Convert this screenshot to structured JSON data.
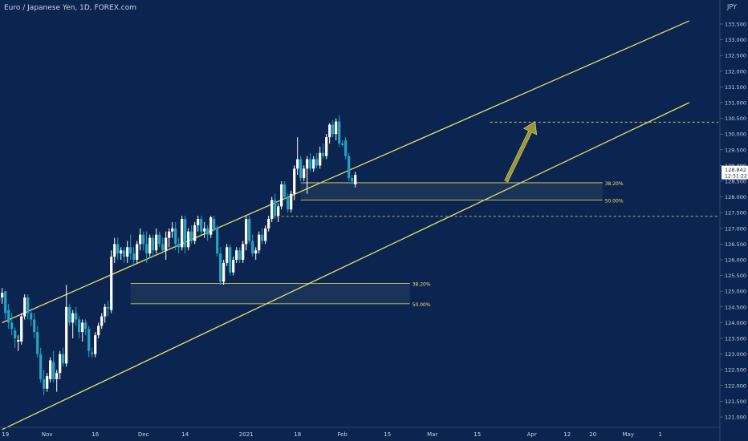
{
  "title": "Euro / Japanese Yen, 1D, FOREX.com",
  "currency": "JPY",
  "colors": {
    "background": "#0c2550",
    "up": "#ffffff",
    "down": "#26a3c4",
    "line": "#e6e06a",
    "zone": "#1f3a5c",
    "arrow": "#a7a23a",
    "text": "#c8d3e6"
  },
  "chart_data": {
    "type": "candlestick",
    "title": "Euro / Japanese Yen, 1D, FOREX.com",
    "y_ticks": [
      "121.000",
      "121.500",
      "122.000",
      "122.500",
      "123.000",
      "123.500",
      "124.000",
      "124.500",
      "125.000",
      "125.500",
      "126.000",
      "126.500",
      "127.000",
      "127.500",
      "128.000",
      "128.500",
      "129.000",
      "129.500",
      "130.000",
      "130.500",
      "131.000",
      "131.500",
      "132.000",
      "132.500",
      "133.000",
      "133.500"
    ],
    "x_ticks": [
      {
        "label": "19",
        "day": 0
      },
      {
        "label": "Nov",
        "day": 13
      },
      {
        "label": "16",
        "day": 28
      },
      {
        "label": "Dec",
        "day": 43
      },
      {
        "label": "14",
        "day": 56
      },
      {
        "label": "2021",
        "day": 75
      },
      {
        "label": "18",
        "day": 91
      },
      {
        "label": "Feb",
        "day": 105
      },
      {
        "label": "15",
        "day": 119
      },
      {
        "label": "Mar",
        "day": 133
      },
      {
        "label": "15",
        "day": 147
      },
      {
        "label": "Apr",
        "day": 164
      },
      {
        "label": "12",
        "day": 175
      },
      {
        "label": "20",
        "day": 183
      },
      {
        "label": "May",
        "day": 194
      },
      {
        "label": "1",
        "day": 204
      }
    ],
    "current_price": "128.842",
    "countdown": "12:51:22",
    "price_scale_extra": "127.500",
    "upper_channel": [
      [
        -1,
        124.0
      ],
      [
        213,
        133.6
      ]
    ],
    "lower_channel": [
      [
        -1,
        120.6
      ],
      [
        213,
        131.0
      ]
    ],
    "zones": [
      {
        "top": 125.25,
        "bottom": 124.6,
        "from_day": 39,
        "to_day": 126,
        "top_label": "38.20%",
        "bottom_label": "50.00%"
      },
      {
        "top": 128.45,
        "bottom": 127.9,
        "from_day": 92,
        "to_day": 186,
        "top_label": "38.20%",
        "bottom_label": "50.00%"
      }
    ],
    "resistance_levels": [
      {
        "price": 130.38,
        "from_day": 151
      },
      {
        "price": 127.38,
        "from_day": 83
      }
    ],
    "arrow": {
      "from": [
        156,
        128.5
      ],
      "to": [
        165,
        130.4
      ]
    },
    "candles": [
      {
        "d": -3,
        "o": 124.6,
        "h": 125.1,
        "l": 124.5,
        "c": 124.8
      },
      {
        "d": -2,
        "o": 124.8,
        "h": 125.0,
        "l": 124.5,
        "c": 124.7
      },
      {
        "d": -1,
        "o": 124.8,
        "h": 125.1,
        "l": 124.6,
        "c": 124.95
      },
      {
        "d": 0,
        "o": 125.0,
        "h": 125.0,
        "l": 124.1,
        "c": 124.3
      },
      {
        "d": 1,
        "o": 124.4,
        "h": 124.6,
        "l": 123.8,
        "c": 124.0
      },
      {
        "d": 2,
        "o": 124.0,
        "h": 124.3,
        "l": 123.6,
        "c": 123.8
      },
      {
        "d": 3,
        "o": 123.75,
        "h": 123.85,
        "l": 123.2,
        "c": 123.5
      },
      {
        "d": 4,
        "o": 123.4,
        "h": 123.6,
        "l": 123.1,
        "c": 123.45
      },
      {
        "d": 5,
        "o": 123.4,
        "h": 124.3,
        "l": 123.3,
        "c": 124.2
      },
      {
        "d": 6,
        "o": 124.2,
        "h": 124.9,
        "l": 124.1,
        "c": 124.8
      },
      {
        "d": 7,
        "o": 124.8,
        "h": 124.9,
        "l": 124.1,
        "c": 124.3
      },
      {
        "d": 8,
        "o": 124.3,
        "h": 124.45,
        "l": 123.9,
        "c": 124.1
      },
      {
        "d": 9,
        "o": 124.1,
        "h": 124.3,
        "l": 123.5,
        "c": 123.7
      },
      {
        "d": 10,
        "o": 123.7,
        "h": 123.9,
        "l": 122.9,
        "c": 123.0
      },
      {
        "d": 11,
        "o": 123.0,
        "h": 123.2,
        "l": 122.1,
        "c": 122.2
      },
      {
        "d": 12,
        "o": 122.2,
        "h": 122.5,
        "l": 121.7,
        "c": 121.9
      },
      {
        "d": 13,
        "o": 121.9,
        "h": 122.4,
        "l": 121.8,
        "c": 122.3
      },
      {
        "d": 14,
        "o": 122.2,
        "h": 122.9,
        "l": 122.1,
        "c": 122.8
      },
      {
        "d": 15,
        "o": 122.75,
        "h": 123.1,
        "l": 122.1,
        "c": 122.2
      },
      {
        "d": 16,
        "o": 122.2,
        "h": 122.5,
        "l": 121.8,
        "c": 122.4
      },
      {
        "d": 17,
        "o": 122.4,
        "h": 123.1,
        "l": 122.2,
        "c": 123.0
      },
      {
        "d": 18,
        "o": 123.0,
        "h": 123.2,
        "l": 122.6,
        "c": 122.7
      },
      {
        "d": 19,
        "o": 122.7,
        "h": 125.2,
        "l": 122.6,
        "c": 124.5
      },
      {
        "d": 20,
        "o": 124.5,
        "h": 124.6,
        "l": 123.9,
        "c": 124.0
      },
      {
        "d": 21,
        "o": 124.0,
        "h": 124.4,
        "l": 123.5,
        "c": 124.3
      },
      {
        "d": 22,
        "o": 124.3,
        "h": 124.5,
        "l": 123.9,
        "c": 124.1
      },
      {
        "d": 23,
        "o": 124.1,
        "h": 124.2,
        "l": 123.5,
        "c": 123.7
      },
      {
        "d": 24,
        "o": 123.7,
        "h": 124.1,
        "l": 123.4,
        "c": 124.0
      },
      {
        "d": 25,
        "o": 124.0,
        "h": 124.1,
        "l": 123.6,
        "c": 123.8
      },
      {
        "d": 26,
        "o": 123.8,
        "h": 123.9,
        "l": 122.9,
        "c": 123.1
      },
      {
        "d": 27,
        "o": 123.05,
        "h": 123.2,
        "l": 122.9,
        "c": 123.0
      },
      {
        "d": 28,
        "o": 123.0,
        "h": 123.7,
        "l": 122.9,
        "c": 123.6
      },
      {
        "d": 29,
        "o": 123.6,
        "h": 124.0,
        "l": 123.5,
        "c": 123.9
      },
      {
        "d": 30,
        "o": 123.9,
        "h": 124.3,
        "l": 123.8,
        "c": 124.2
      },
      {
        "d": 31,
        "o": 124.2,
        "h": 124.6,
        "l": 124.0,
        "c": 124.5
      },
      {
        "d": 32,
        "o": 124.5,
        "h": 124.7,
        "l": 124.2,
        "c": 124.45
      },
      {
        "d": 33,
        "o": 124.4,
        "h": 126.3,
        "l": 124.3,
        "c": 126.1
      },
      {
        "d": 34,
        "o": 126.1,
        "h": 126.7,
        "l": 125.9,
        "c": 126.5
      },
      {
        "d": 35,
        "o": 126.5,
        "h": 126.7,
        "l": 126.0,
        "c": 126.2
      },
      {
        "d": 36,
        "o": 126.2,
        "h": 126.4,
        "l": 126.0,
        "c": 126.3
      },
      {
        "d": 37,
        "o": 126.3,
        "h": 126.4,
        "l": 125.9,
        "c": 126.1
      },
      {
        "d": 38,
        "o": 126.1,
        "h": 126.6,
        "l": 125.9,
        "c": 126.4
      },
      {
        "d": 39,
        "o": 126.4,
        "h": 126.8,
        "l": 126.0,
        "c": 126.2
      },
      {
        "d": 40,
        "o": 126.2,
        "h": 126.4,
        "l": 125.8,
        "c": 126.0
      },
      {
        "d": 41,
        "o": 126.0,
        "h": 126.6,
        "l": 125.9,
        "c": 126.5
      },
      {
        "d": 42,
        "o": 126.5,
        "h": 127.0,
        "l": 126.3,
        "c": 126.8
      },
      {
        "d": 43,
        "o": 126.8,
        "h": 126.9,
        "l": 126.3,
        "c": 126.5
      },
      {
        "d": 44,
        "o": 126.5,
        "h": 126.9,
        "l": 125.9,
        "c": 126.2
      },
      {
        "d": 45,
        "o": 126.2,
        "h": 126.8,
        "l": 126.1,
        "c": 126.7
      },
      {
        "d": 46,
        "o": 126.7,
        "h": 126.8,
        "l": 126.1,
        "c": 126.3
      },
      {
        "d": 47,
        "o": 126.3,
        "h": 127.0,
        "l": 126.2,
        "c": 126.8
      },
      {
        "d": 48,
        "o": 126.8,
        "h": 126.9,
        "l": 126.4,
        "c": 126.5
      },
      {
        "d": 49,
        "o": 126.5,
        "h": 126.7,
        "l": 126.2,
        "c": 126.3
      },
      {
        "d": 50,
        "o": 126.3,
        "h": 126.9,
        "l": 126.0,
        "c": 126.7
      },
      {
        "d": 51,
        "o": 126.7,
        "h": 127.0,
        "l": 126.4,
        "c": 126.9
      },
      {
        "d": 52,
        "o": 126.9,
        "h": 127.2,
        "l": 126.7,
        "c": 127.0
      },
      {
        "d": 53,
        "o": 127.0,
        "h": 127.2,
        "l": 126.3,
        "c": 126.5
      },
      {
        "d": 54,
        "o": 126.5,
        "h": 126.7,
        "l": 126.2,
        "c": 126.4
      },
      {
        "d": 55,
        "o": 126.4,
        "h": 127.4,
        "l": 126.3,
        "c": 127.3
      },
      {
        "d": 56,
        "o": 127.3,
        "h": 127.4,
        "l": 126.2,
        "c": 126.4
      },
      {
        "d": 57,
        "o": 126.4,
        "h": 127.0,
        "l": 126.3,
        "c": 126.9
      },
      {
        "d": 58,
        "o": 126.9,
        "h": 127.1,
        "l": 126.5,
        "c": 126.6
      },
      {
        "d": 59,
        "o": 126.6,
        "h": 127.2,
        "l": 126.5,
        "c": 127.1
      },
      {
        "d": 60,
        "o": 127.1,
        "h": 127.4,
        "l": 126.9,
        "c": 127.3
      },
      {
        "d": 61,
        "o": 127.3,
        "h": 127.4,
        "l": 126.8,
        "c": 126.9
      },
      {
        "d": 62,
        "o": 126.9,
        "h": 127.2,
        "l": 126.7,
        "c": 127.0
      },
      {
        "d": 63,
        "o": 127.0,
        "h": 127.1,
        "l": 126.6,
        "c": 126.8
      },
      {
        "d": 64,
        "o": 126.8,
        "h": 127.4,
        "l": 126.7,
        "c": 127.35
      },
      {
        "d": 65,
        "o": 127.3,
        "h": 127.4,
        "l": 126.9,
        "c": 127.0
      },
      {
        "d": 66,
        "o": 127.0,
        "h": 127.1,
        "l": 126.1,
        "c": 126.2
      },
      {
        "d": 67,
        "o": 126.2,
        "h": 126.4,
        "l": 125.2,
        "c": 125.3
      },
      {
        "d": 68,
        "o": 125.3,
        "h": 126.0,
        "l": 125.2,
        "c": 125.9
      },
      {
        "d": 69,
        "o": 125.9,
        "h": 126.5,
        "l": 125.8,
        "c": 126.4
      },
      {
        "d": 70,
        "o": 126.4,
        "h": 126.5,
        "l": 125.5,
        "c": 125.6
      },
      {
        "d": 71,
        "o": 125.6,
        "h": 126.1,
        "l": 125.5,
        "c": 126.0
      },
      {
        "d": 72,
        "o": 126.0,
        "h": 126.4,
        "l": 125.9,
        "c": 126.3
      },
      {
        "d": 73,
        "o": 126.3,
        "h": 126.4,
        "l": 125.9,
        "c": 126.0
      },
      {
        "d": 74,
        "o": 126.0,
        "h": 126.6,
        "l": 125.9,
        "c": 126.5
      },
      {
        "d": 75,
        "o": 126.5,
        "h": 127.4,
        "l": 126.3,
        "c": 127.3
      },
      {
        "d": 76,
        "o": 127.3,
        "h": 127.4,
        "l": 126.5,
        "c": 126.6
      },
      {
        "d": 77,
        "o": 126.6,
        "h": 126.8,
        "l": 126.1,
        "c": 126.2
      },
      {
        "d": 78,
        "o": 126.2,
        "h": 126.4,
        "l": 126.0,
        "c": 126.3
      },
      {
        "d": 79,
        "o": 126.3,
        "h": 126.9,
        "l": 126.2,
        "c": 126.8
      },
      {
        "d": 80,
        "o": 126.8,
        "h": 127.0,
        "l": 126.5,
        "c": 126.6
      },
      {
        "d": 81,
        "o": 126.6,
        "h": 127.1,
        "l": 126.5,
        "c": 127.0
      },
      {
        "d": 82,
        "o": 127.0,
        "h": 127.4,
        "l": 126.9,
        "c": 127.3
      },
      {
        "d": 83,
        "o": 127.3,
        "h": 128.0,
        "l": 127.2,
        "c": 127.9
      },
      {
        "d": 84,
        "o": 127.9,
        "h": 128.1,
        "l": 127.3,
        "c": 127.4
      },
      {
        "d": 85,
        "o": 127.4,
        "h": 127.8,
        "l": 127.2,
        "c": 127.7
      },
      {
        "d": 86,
        "o": 127.7,
        "h": 128.5,
        "l": 127.6,
        "c": 128.4
      },
      {
        "d": 87,
        "o": 128.4,
        "h": 128.5,
        "l": 127.9,
        "c": 128.0
      },
      {
        "d": 88,
        "o": 128.0,
        "h": 128.1,
        "l": 127.5,
        "c": 127.6
      },
      {
        "d": 89,
        "o": 127.6,
        "h": 128.2,
        "l": 127.5,
        "c": 128.1
      },
      {
        "d": 90,
        "o": 128.1,
        "h": 129.0,
        "l": 127.9,
        "c": 128.9
      },
      {
        "d": 91,
        "o": 128.9,
        "h": 129.9,
        "l": 128.7,
        "c": 129.2
      },
      {
        "d": 92,
        "o": 129.2,
        "h": 129.3,
        "l": 128.5,
        "c": 128.6
      },
      {
        "d": 93,
        "o": 128.6,
        "h": 129.0,
        "l": 128.5,
        "c": 128.9
      },
      {
        "d": 94,
        "o": 128.9,
        "h": 129.3,
        "l": 128.1,
        "c": 129.2
      },
      {
        "d": 95,
        "o": 129.2,
        "h": 129.4,
        "l": 128.8,
        "c": 128.9
      },
      {
        "d": 96,
        "o": 128.9,
        "h": 129.3,
        "l": 128.8,
        "c": 129.2
      },
      {
        "d": 97,
        "o": 129.2,
        "h": 129.4,
        "l": 128.9,
        "c": 129.0
      },
      {
        "d": 98,
        "o": 129.0,
        "h": 129.6,
        "l": 128.9,
        "c": 129.4
      },
      {
        "d": 99,
        "o": 129.4,
        "h": 129.7,
        "l": 129.2,
        "c": 129.3
      },
      {
        "d": 100,
        "o": 129.3,
        "h": 130.0,
        "l": 129.2,
        "c": 129.9
      },
      {
        "d": 101,
        "o": 129.9,
        "h": 130.35,
        "l": 129.7,
        "c": 130.3
      },
      {
        "d": 102,
        "o": 130.3,
        "h": 130.45,
        "l": 129.9,
        "c": 130.0
      },
      {
        "d": 103,
        "o": 130.0,
        "h": 130.5,
        "l": 129.8,
        "c": 130.4
      },
      {
        "d": 104,
        "o": 130.4,
        "h": 130.6,
        "l": 129.6,
        "c": 129.7
      },
      {
        "d": 105,
        "o": 129.7,
        "h": 129.8,
        "l": 129.6,
        "c": 129.65
      },
      {
        "d": 106,
        "o": 129.8,
        "h": 129.9,
        "l": 129.2,
        "c": 129.3
      },
      {
        "d": 107,
        "o": 129.3,
        "h": 129.4,
        "l": 128.5,
        "c": 128.6
      },
      {
        "d": 108,
        "o": 128.6,
        "h": 128.7,
        "l": 128.4,
        "c": 128.5
      },
      {
        "d": 109,
        "o": 128.4,
        "h": 128.8,
        "l": 128.3,
        "c": 128.7
      }
    ],
    "_": null
  }
}
